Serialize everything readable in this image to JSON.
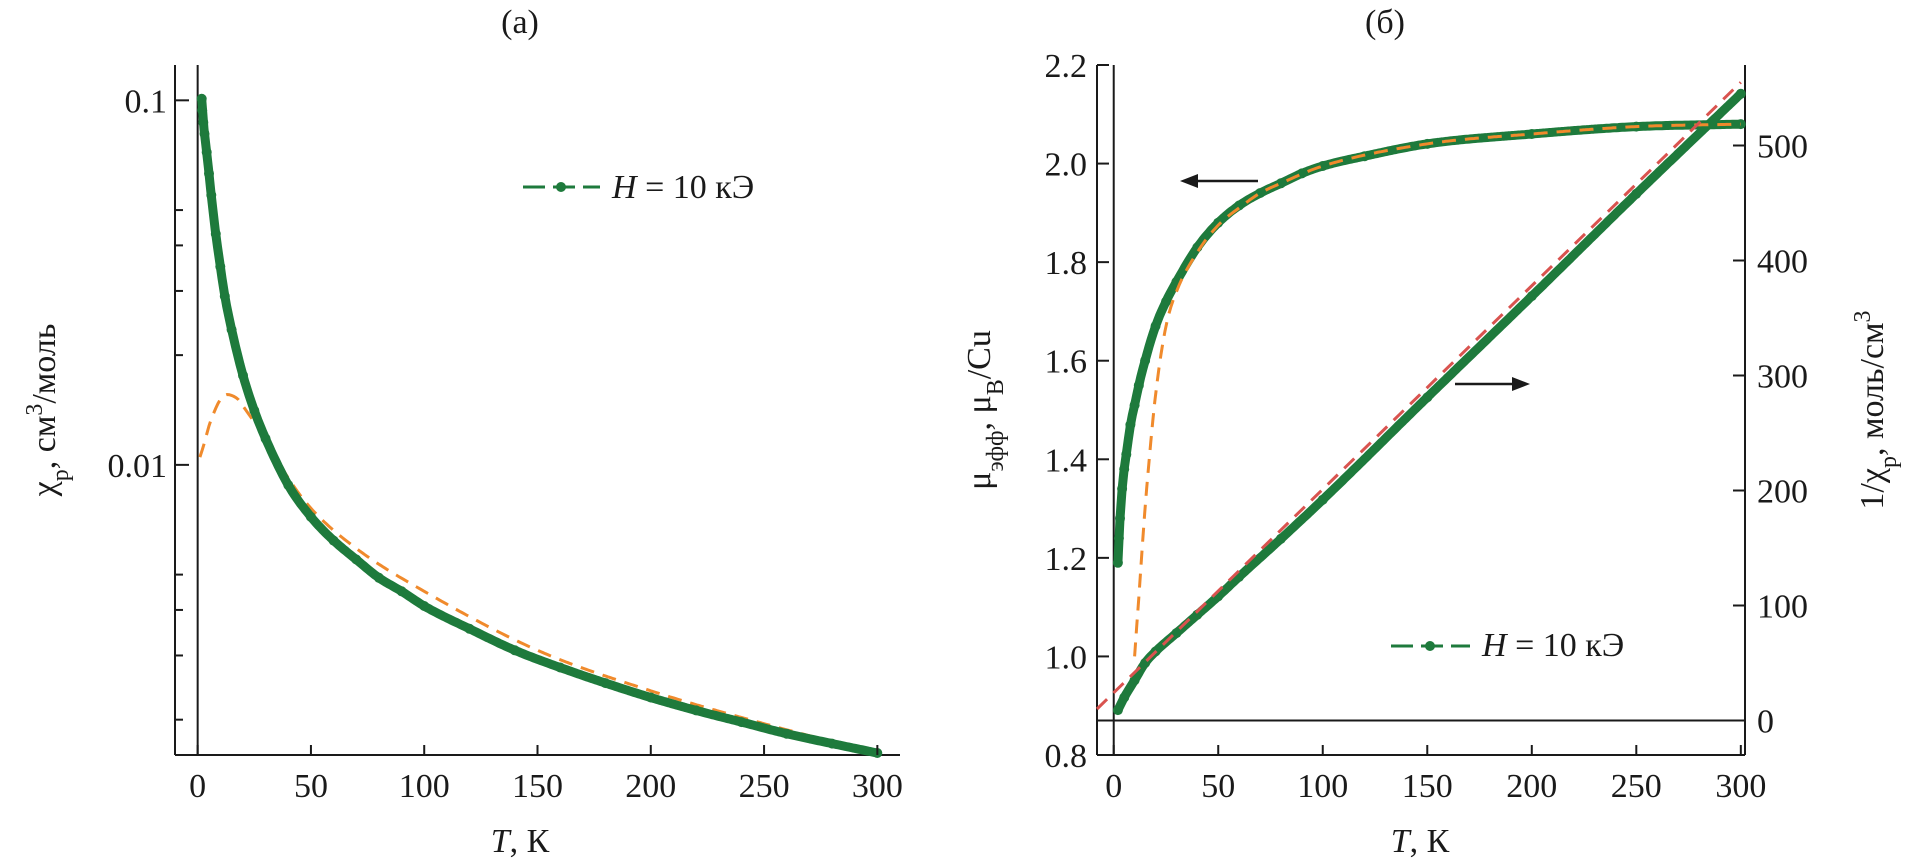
{
  "colors": {
    "axis": "#1a1a1a",
    "data": "#1e7a3c",
    "fit_orange": "#f08a2c",
    "fit_red": "#d9534f"
  },
  "chart_data": [
    {
      "panel_label": "(а)",
      "type": "scatter",
      "xlabel_italic": "T",
      "xlabel_rest": ", К",
      "ylabel": "χp, см3/моль",
      "y_scale": "log",
      "xlim": [
        -10,
        310
      ],
      "ylim": [
        0.0016,
        0.125
      ],
      "xticks": [
        0,
        50,
        100,
        150,
        200,
        250,
        300
      ],
      "yticks": [
        0.01,
        0.1
      ],
      "ytick_labels": [
        "0.01",
        "0.1"
      ],
      "y_minor_ticks": [
        0.002,
        0.003,
        0.004,
        0.005,
        0.02,
        0.03,
        0.04,
        0.05
      ],
      "legend": {
        "label_italic": "H",
        "label_rest": " = 10 кЭ",
        "position": "top-right"
      },
      "series": [
        {
          "style": "points",
          "x": [
            1.8,
            2,
            2.5,
            3,
            4,
            5,
            6,
            8,
            10,
            12,
            15,
            20,
            25,
            30,
            40,
            50,
            60,
            70,
            80,
            90,
            100,
            120,
            140,
            160,
            180,
            200,
            220,
            240,
            260,
            280,
            300
          ],
          "y": [
            0.101,
            0.094,
            0.087,
            0.081,
            0.072,
            0.063,
            0.055,
            0.043,
            0.035,
            0.029,
            0.0235,
            0.0176,
            0.0141,
            0.0118,
            0.0088,
            0.0072,
            0.0062,
            0.0055,
            0.0049,
            0.0045,
            0.0041,
            0.00355,
            0.0031,
            0.00278,
            0.00252,
            0.0023,
            0.00212,
            0.00197,
            0.00183,
            0.00172,
            0.00162
          ]
        },
        {
          "style": "dashed",
          "x": [
            1,
            3,
            5,
            8,
            10,
            13,
            15,
            18,
            20,
            25,
            30,
            40,
            50,
            70,
            100,
            150,
            200,
            250,
            300
          ],
          "y": [
            0.0105,
            0.0115,
            0.0128,
            0.0143,
            0.0151,
            0.0156,
            0.0155,
            0.0151,
            0.0145,
            0.0131,
            0.0118,
            0.0092,
            0.0076,
            0.0059,
            0.0045,
            0.0031,
            0.0024,
            0.00195,
            0.00162
          ]
        }
      ]
    },
    {
      "panel_label": "(б)",
      "type": "scatter",
      "xlabel_italic": "T",
      "xlabel_rest": ", К",
      "ylabel_left": "μэфф, μB/Cu",
      "ylabel_right": "1/χp, моль/см3",
      "xlim": [
        -8,
        302
      ],
      "ylim_left": [
        0.8,
        2.2
      ],
      "ylim_right": [
        -30,
        570
      ],
      "xticks": [
        0,
        50,
        100,
        150,
        200,
        250,
        300
      ],
      "yticks_left": [
        0.8,
        1.0,
        1.2,
        1.4,
        1.6,
        1.8,
        2.0,
        2.2
      ],
      "ytick_labels_left": [
        "0.8",
        "1.0",
        "1.2",
        "1.4",
        "1.6",
        "1.8",
        "2.0",
        "2.2"
      ],
      "yticks_right": [
        0,
        100,
        200,
        300,
        400,
        500
      ],
      "legend": {
        "label_italic": "H",
        "label_rest": " = 10 кЭ",
        "position": "bottom-right"
      },
      "series": [
        {
          "axis": "left",
          "style": "points",
          "x": [
            2,
            2.5,
            3,
            4,
            5,
            6,
            8,
            10,
            12,
            15,
            20,
            25,
            30,
            40,
            50,
            60,
            70,
            80,
            90,
            100,
            120,
            150,
            200,
            250,
            300
          ],
          "y": [
            1.19,
            1.24,
            1.28,
            1.34,
            1.38,
            1.41,
            1.47,
            1.51,
            1.55,
            1.6,
            1.67,
            1.72,
            1.76,
            1.83,
            1.88,
            1.915,
            1.94,
            1.96,
            1.98,
            1.995,
            2.015,
            2.04,
            2.06,
            2.075,
            2.08
          ]
        },
        {
          "axis": "left",
          "style": "dashed",
          "x": [
            10,
            12,
            15,
            20,
            25,
            30,
            40,
            50,
            60,
            70,
            80,
            100,
            150,
            200,
            250,
            300
          ],
          "y": [
            1.0,
            1.12,
            1.3,
            1.53,
            1.67,
            1.74,
            1.82,
            1.875,
            1.91,
            1.94,
            1.96,
            1.995,
            2.04,
            2.06,
            2.075,
            2.08
          ]
        },
        {
          "axis": "right",
          "style": "points",
          "x": [
            2,
            5,
            10,
            15,
            20,
            30,
            40,
            50,
            60,
            80,
            100,
            150,
            200,
            250,
            300
          ],
          "y": [
            9,
            20,
            35,
            50,
            60,
            76,
            92,
            108,
            125,
            158,
            192,
            281,
            369,
            458,
            545
          ]
        },
        {
          "axis": "right",
          "style": "dashed",
          "x": [
            -8,
            300
          ],
          "y": [
            10,
            555
          ]
        }
      ]
    }
  ]
}
